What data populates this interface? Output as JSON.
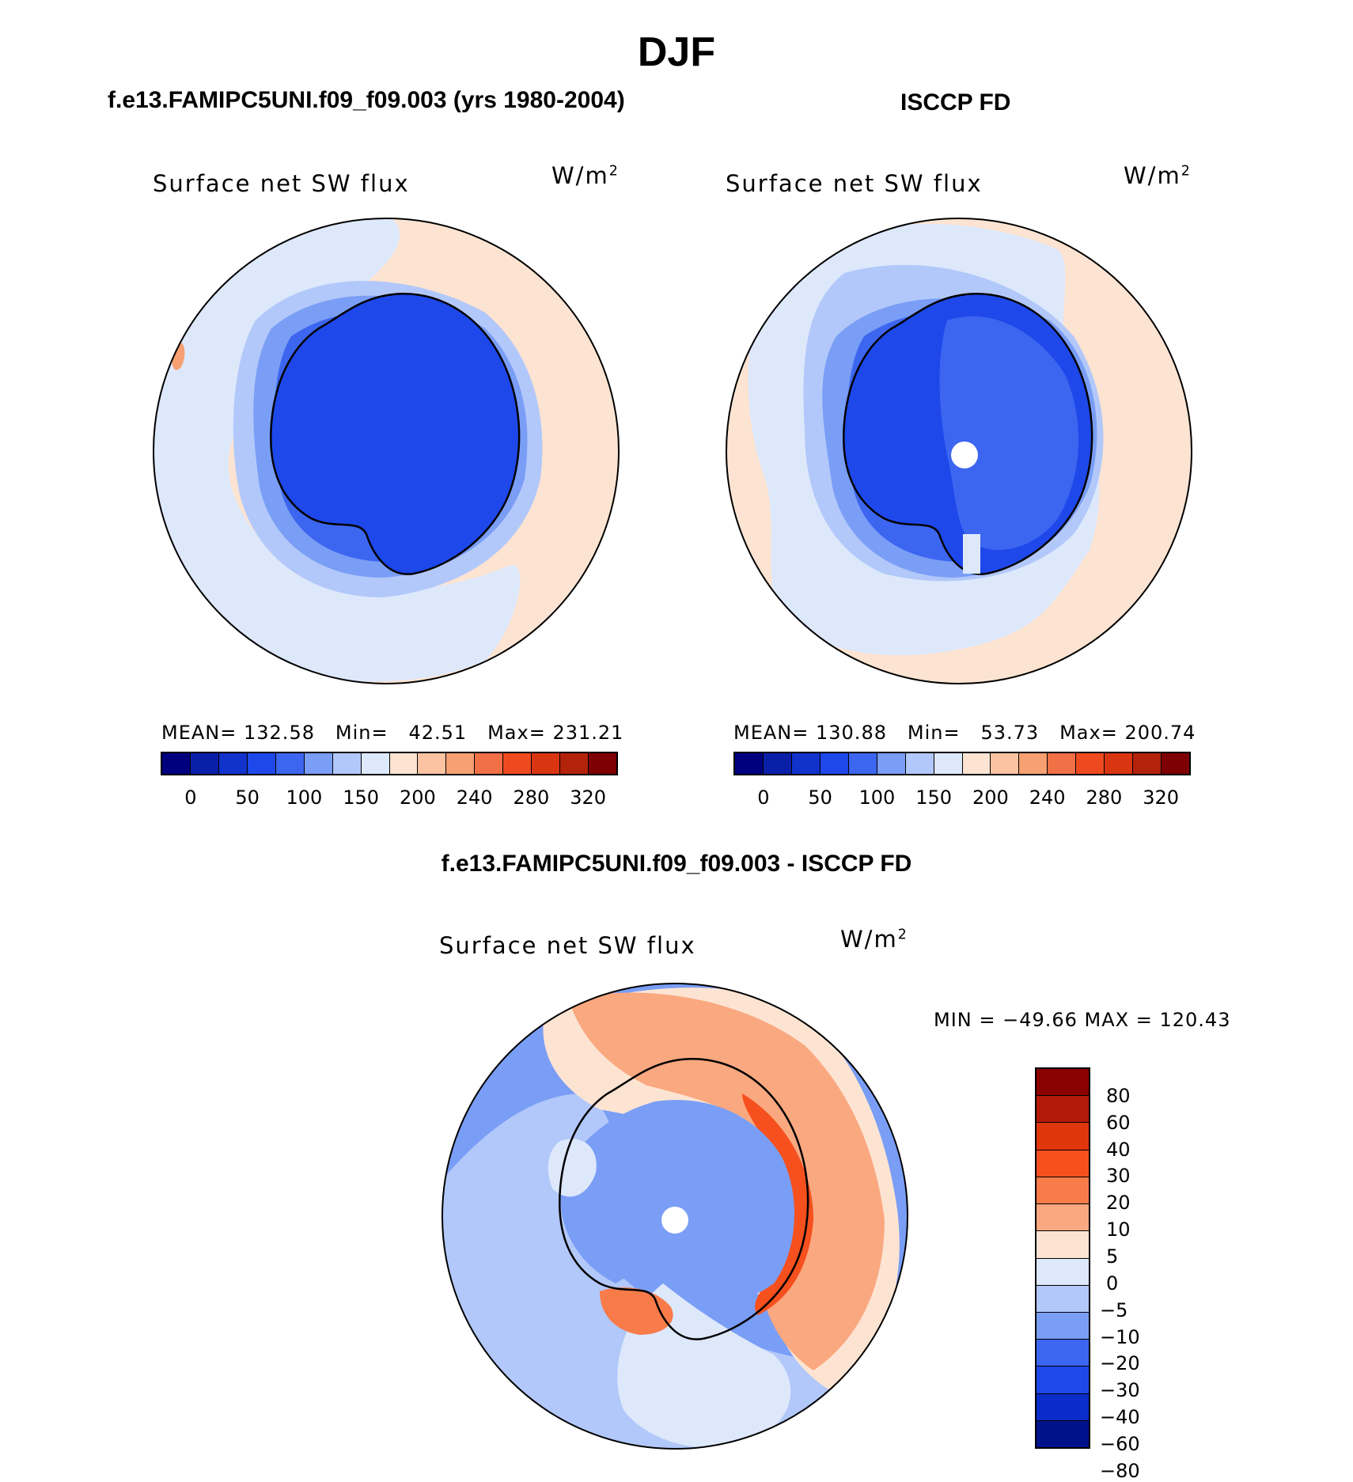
{
  "title": "DJF",
  "panels": {
    "left": {
      "subtitle": "f.e13.FAMIPC5UNI.f09_f09.003 (yrs 1980-2004)",
      "var": "Surface net SW flux",
      "units": "W/m",
      "units_sup": "2",
      "mean_label": "MEAN=",
      "mean": "132.58",
      "min_label": "Min=",
      "min": "42.51",
      "max_label": "Max=",
      "max": "231.21"
    },
    "right": {
      "subtitle": "ISCCP FD",
      "var": "Surface net SW flux",
      "units": "W/m",
      "units_sup": "2",
      "mean_label": "MEAN=",
      "mean": "130.88",
      "min_label": "Min=",
      "min": "53.73",
      "max_label": "Max=",
      "max": "200.74"
    },
    "diff": {
      "subtitle": "f.e13.FAMIPC5UNI.f09_f09.003 - ISCCP FD",
      "var": "Surface net SW flux",
      "units": "W/m",
      "units_sup": "2",
      "minmax": "MIN = −49.66  MAX = 120.43"
    }
  },
  "abs_colorbar": {
    "colors": [
      "#00007f",
      "#0a1fa8",
      "#1232cc",
      "#1e48ea",
      "#3c66f0",
      "#7a9ef6",
      "#b2c8fa",
      "#dde8fb",
      "#fde4d2",
      "#fbc3a2",
      "#f7a071",
      "#f27046",
      "#ef4a1f",
      "#d93510",
      "#b3220b",
      "#7e0005"
    ],
    "ticks": [
      "0",
      "50",
      "100",
      "150",
      "200",
      "240",
      "280",
      "320"
    ]
  },
  "diff_colorbar": {
    "colors": [
      "#8b0000",
      "#b31a0a",
      "#e0360c",
      "#f5501e",
      "#f87b4a",
      "#faa880",
      "#fde4d2",
      "#dde8fb",
      "#b2c8fa",
      "#7a9ef6",
      "#3c66f0",
      "#1e48ea",
      "#0a2cc8",
      "#00128b"
    ],
    "ticks": [
      "80",
      "60",
      "40",
      "30",
      "20",
      "10",
      "5",
      "0",
      "−5",
      "−10",
      "−20",
      "−30",
      "−40",
      "−60",
      "−80"
    ]
  },
  "chart_data": [
    {
      "type": "heatmap",
      "title": "Surface net SW flux",
      "subtitle": "f.e13.FAMIPC5UNI.f09_f09.003 (yrs 1980-2004)",
      "projection": "south polar stereographic",
      "units": "W/m2",
      "levels": [
        0,
        25,
        50,
        75,
        100,
        125,
        150,
        175,
        200,
        220,
        240,
        260,
        280,
        300,
        320
      ],
      "stats": {
        "mean": 132.58,
        "min": 42.51,
        "max": 231.21
      }
    },
    {
      "type": "heatmap",
      "title": "Surface net SW flux",
      "subtitle": "ISCCP FD",
      "projection": "south polar stereographic",
      "units": "W/m2",
      "levels": [
        0,
        25,
        50,
        75,
        100,
        125,
        150,
        175,
        200,
        220,
        240,
        260,
        280,
        300,
        320
      ],
      "stats": {
        "mean": 130.88,
        "min": 53.73,
        "max": 200.74
      }
    },
    {
      "type": "heatmap",
      "title": "Surface net SW flux",
      "subtitle": "f.e13.FAMIPC5UNI.f09_f09.003 - ISCCP FD",
      "projection": "south polar stereographic",
      "units": "W/m2",
      "levels": [
        -80,
        -60,
        -40,
        -30,
        -20,
        -10,
        -5,
        0,
        5,
        10,
        20,
        30,
        40,
        60,
        80
      ],
      "stats": {
        "min": -49.66,
        "max": 120.43
      }
    }
  ]
}
